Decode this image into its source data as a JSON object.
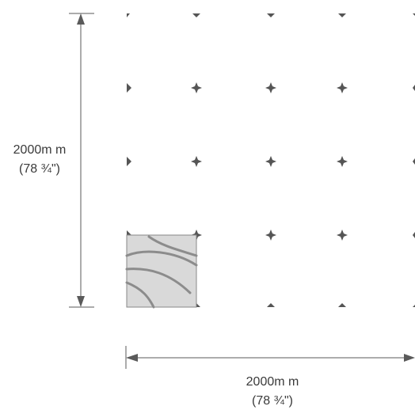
{
  "dimensions": {
    "vertical": {
      "value_label": "2000m m",
      "imperial_label": "(78  ¾\")"
    },
    "horizontal": {
      "value_label": "2000m m",
      "imperial_label": "(78  ¾\")"
    }
  },
  "colors": {
    "grid_marker": "#555555",
    "dimension_line": "#5a5a5a",
    "tile_fill": "#d9d9d9",
    "tile_stroke": "#888888",
    "tile_pattern": "#8c8c8c",
    "text": "#3a3a3a"
  }
}
